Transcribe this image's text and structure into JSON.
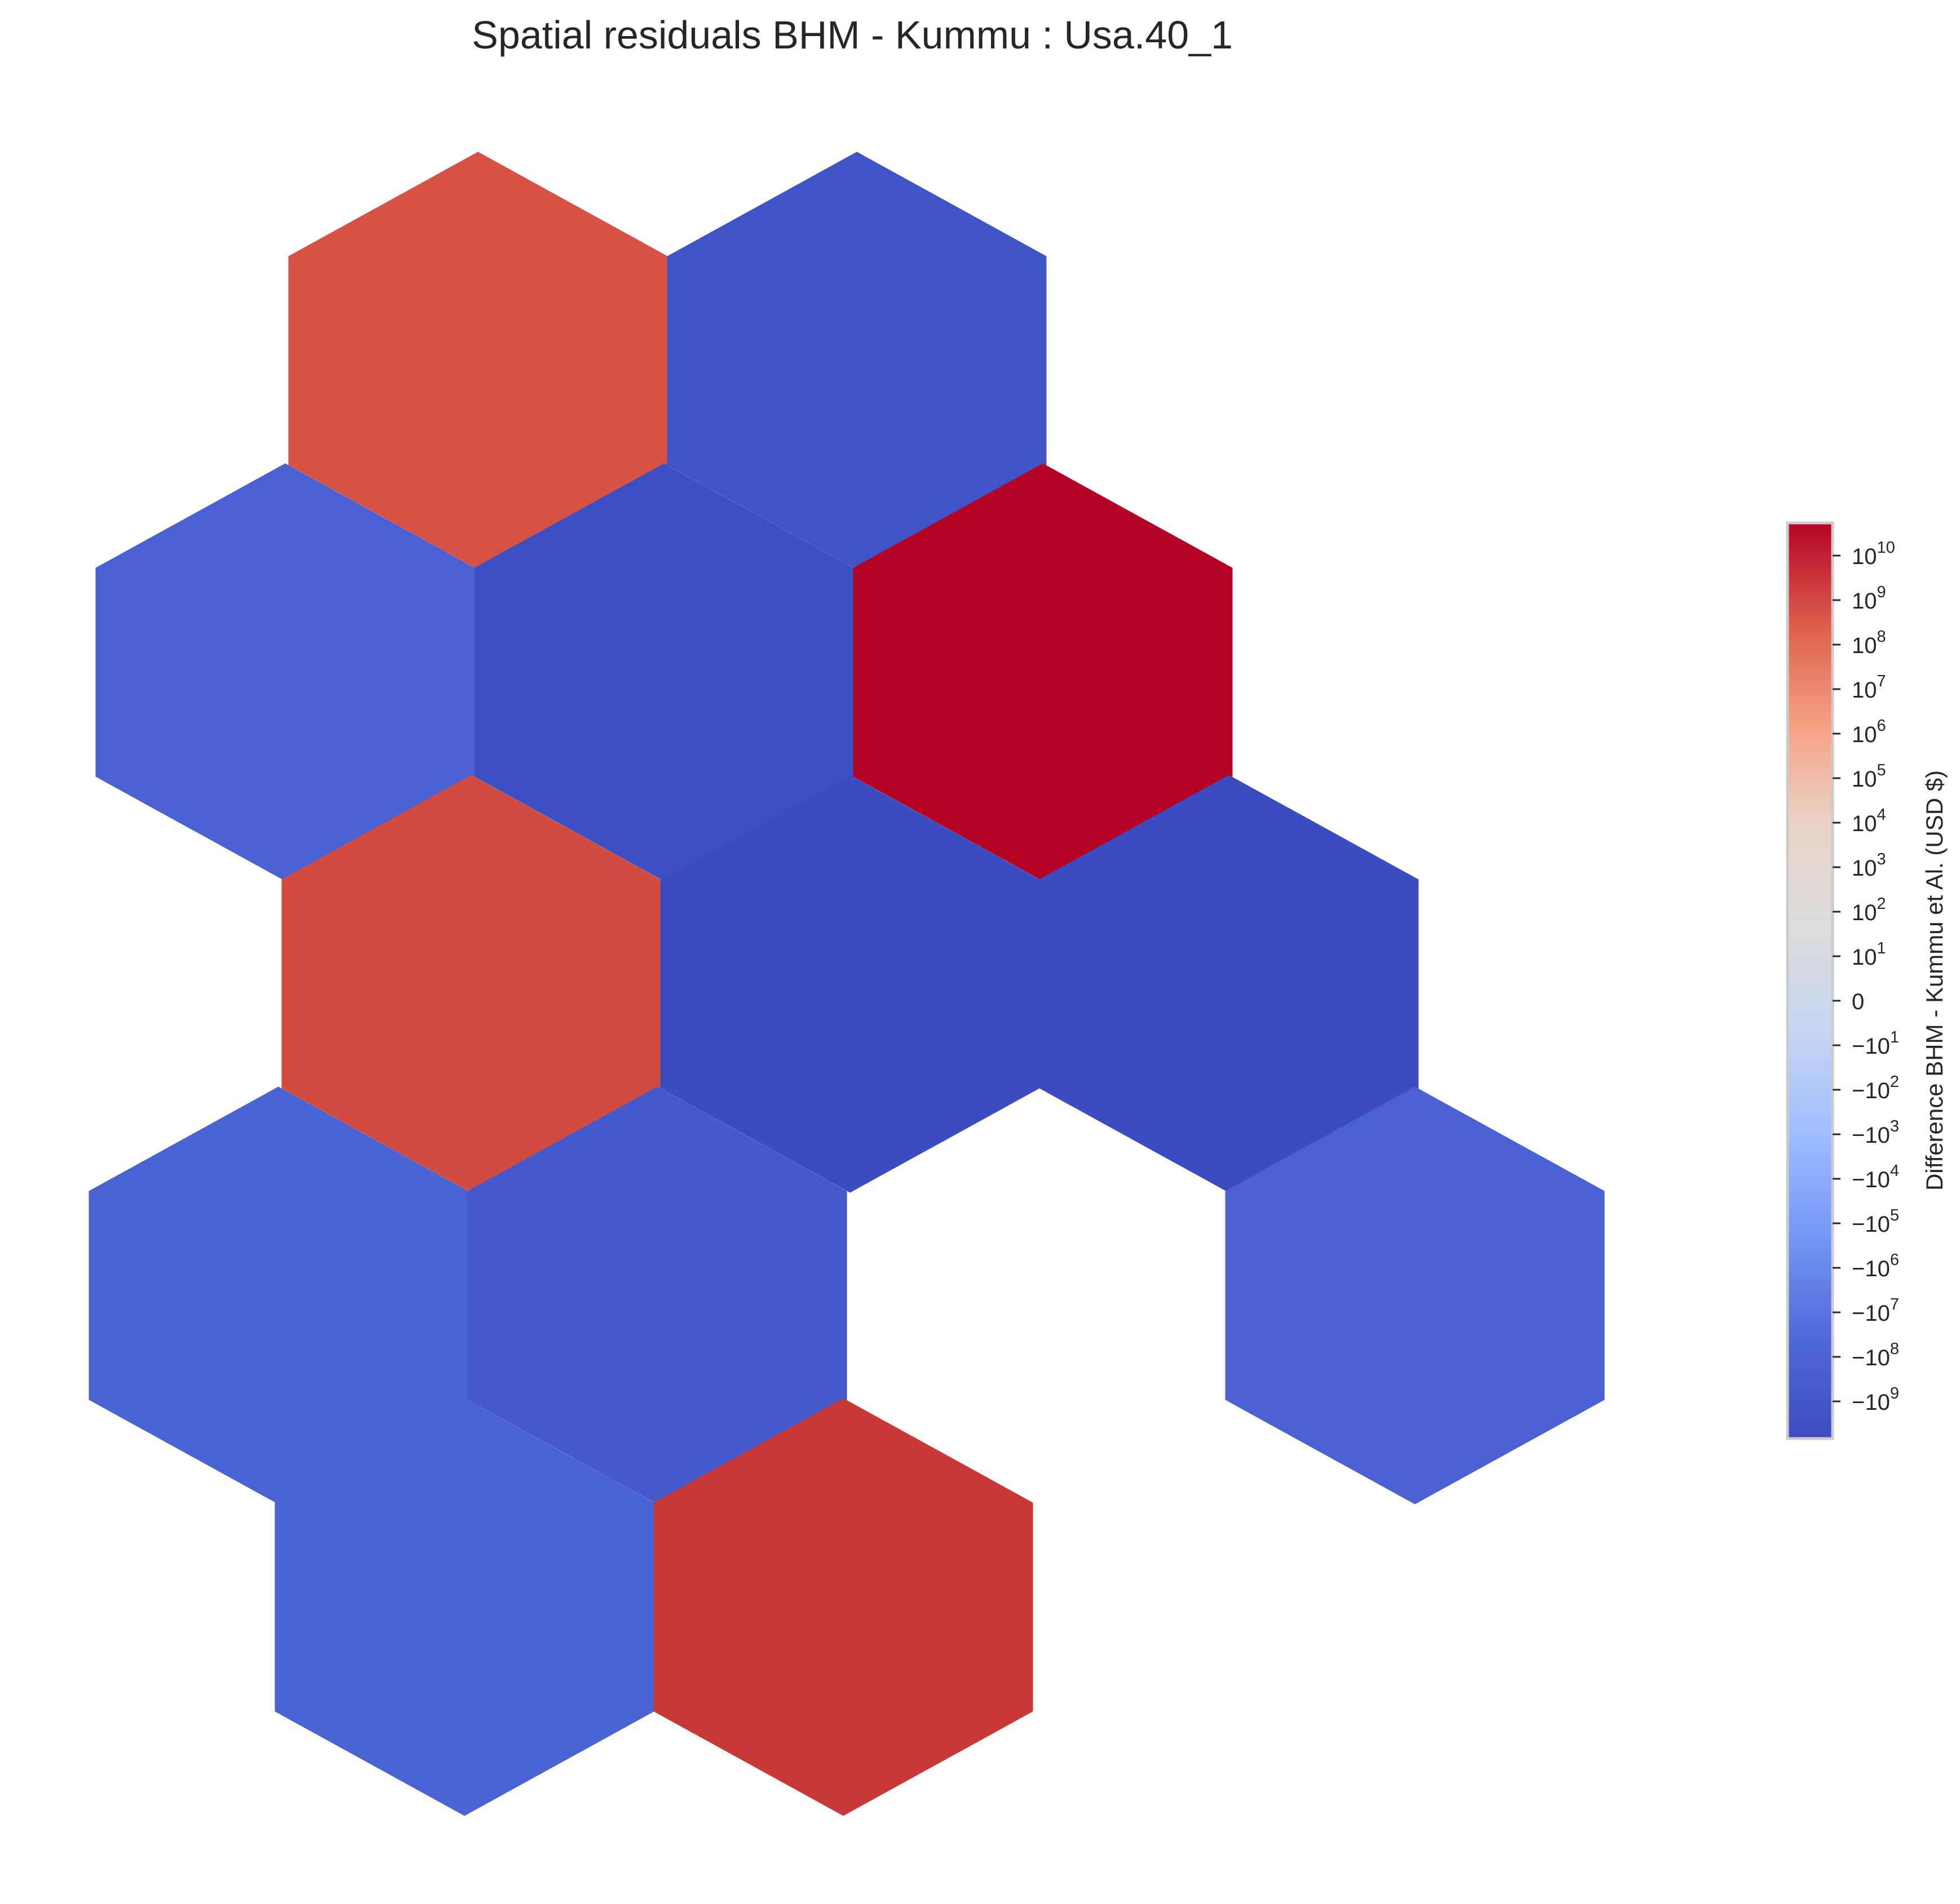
{
  "chart_data": {
    "type": "heatmap",
    "title": "Spatial residuals BHM - Kummu : Usa.40_1",
    "colorbar": {
      "label": "Difference BHM - Kummu et Al. (USD $)",
      "scale": "symlog",
      "colormap": "coolwarm",
      "ticks": [
        {
          "base": "10",
          "exp": "10"
        },
        {
          "base": "10",
          "exp": "9"
        },
        {
          "base": "10",
          "exp": "8"
        },
        {
          "base": "10",
          "exp": "7"
        },
        {
          "base": "10",
          "exp": "6"
        },
        {
          "base": "10",
          "exp": "5"
        },
        {
          "base": "10",
          "exp": "4"
        },
        {
          "base": "10",
          "exp": "3"
        },
        {
          "base": "10",
          "exp": "2"
        },
        {
          "base": "10",
          "exp": "1"
        },
        {
          "base": "0",
          "exp": ""
        },
        {
          "base": "−10",
          "exp": "1"
        },
        {
          "base": "−10",
          "exp": "2"
        },
        {
          "base": "−10",
          "exp": "3"
        },
        {
          "base": "−10",
          "exp": "4"
        },
        {
          "base": "−10",
          "exp": "5"
        },
        {
          "base": "−10",
          "exp": "6"
        },
        {
          "base": "−10",
          "exp": "7"
        },
        {
          "base": "−10",
          "exp": "8"
        },
        {
          "base": "−10",
          "exp": "9"
        }
      ],
      "gradient": [
        "#b40426",
        "#dc5d4a",
        "#f6a283",
        "#ead5c9",
        "#dddddd",
        "#c5d6f2",
        "#9ebeff",
        "#7597f6",
        "#4f69d9",
        "#3b4cc0"
      ]
    },
    "cells": [
      {
        "row": 0,
        "col": 0,
        "color": "#d65244"
      },
      {
        "row": 0,
        "col": 1,
        "color": "#3f54c6"
      },
      {
        "row": 1,
        "col": 0,
        "color": "#4961d2"
      },
      {
        "row": 1,
        "col": 1,
        "color": "#3d50c3"
      },
      {
        "row": 1,
        "col": 2,
        "color": "#b40426"
      },
      {
        "row": 2,
        "col": 0,
        "color": "#d24b40"
      },
      {
        "row": 2,
        "col": 1,
        "color": "#3b4cc0"
      },
      {
        "row": 2,
        "col": 2,
        "color": "#3b4cc0"
      },
      {
        "row": 3,
        "col": 0,
        "color": "#4a63d3"
      },
      {
        "row": 3,
        "col": 1,
        "color": "#445acc"
      },
      {
        "row": 3,
        "col": 3,
        "color": "#4961d2"
      },
      {
        "row": 4,
        "col": 0,
        "color": "#4a63d3"
      },
      {
        "row": 4,
        "col": 1,
        "color": "#c83836"
      }
    ]
  }
}
